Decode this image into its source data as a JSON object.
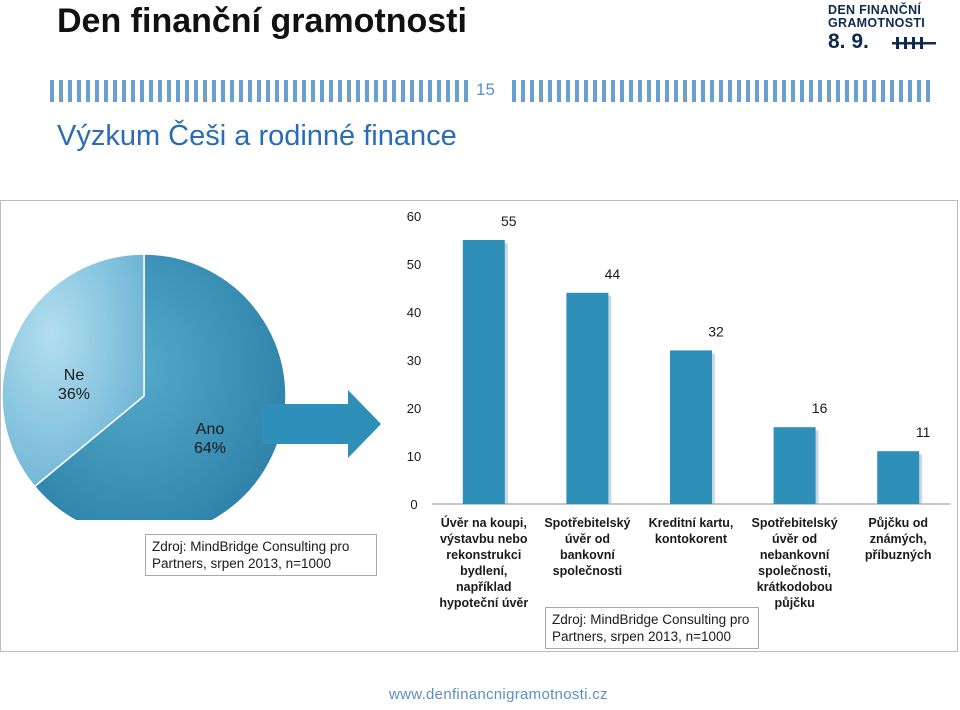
{
  "header": {
    "title": "Den finanční gramotnosti",
    "logo_line1": "DEN FINANČNÍ",
    "logo_line2": "GRAMOTNOSTI",
    "logo_date": "8. 9.",
    "page_number": "15",
    "subtitle": "Výzkum Češi a rodinné finance"
  },
  "colors": {
    "pie_ano": "#3a93b8",
    "pie_ne": "#8ecbe3",
    "bar": "#2e8fb8",
    "arrow": "#2e8fb8",
    "accent": "#2a6cb5"
  },
  "chart_data": [
    {
      "type": "pie",
      "slices": [
        {
          "label": "Ano",
          "value_label": "64%",
          "value": 64
        },
        {
          "label": "Ne",
          "value_label": "36%",
          "value": 36
        }
      ],
      "source": "Zdroj: MindBridge Consulting pro Partners, srpen 2013, n=1000"
    },
    {
      "type": "bar",
      "categories": [
        [
          "Úvěr na koupi,",
          "výstavbu nebo",
          "rekonstrukci",
          "bydlení,",
          "například",
          "hypoteční úvěr"
        ],
        [
          "Spotřebitelský",
          "úvěr od",
          "bankovní",
          "společnosti"
        ],
        [
          "Kreditní kartu,",
          "kontokorent"
        ],
        [
          "Spotřebitelský",
          "úvěr od",
          "nebankovní",
          "společnosti,",
          "krátkodobou",
          "půjčku"
        ],
        [
          "Půjčku od",
          "známých,",
          "příbuzných"
        ]
      ],
      "values": [
        55,
        44,
        32,
        16,
        11
      ],
      "yticks": [
        0,
        10,
        20,
        30,
        40,
        50,
        60
      ],
      "ylim": [
        0,
        60
      ],
      "grid": false,
      "source": "Zdroj: MindBridge Consulting pro Partners, srpen 2013, n=1000"
    }
  ],
  "footer": {
    "url": "www.denfinancnigramotnosti.cz"
  }
}
